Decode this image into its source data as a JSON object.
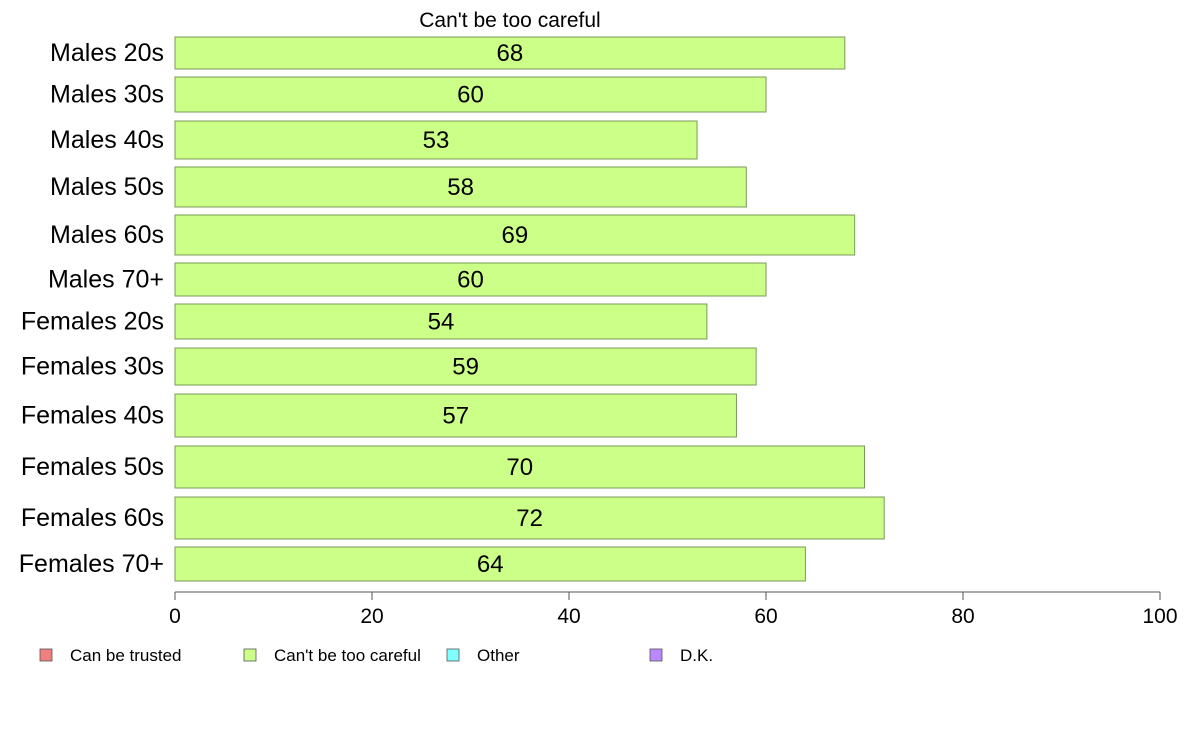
{
  "chart_data": {
    "type": "bar",
    "orientation": "horizontal",
    "title": "Can't be too careful",
    "xlabel": "",
    "ylabel": "",
    "categories": [
      "Males 20s",
      "Males 30s",
      "Males 40s",
      "Males 50s",
      "Males 60s",
      "Males 70+",
      "Females 20s",
      "Females 30s",
      "Females 40s",
      "Females 50s",
      "Females 60s",
      "Females 70+"
    ],
    "values": [
      68,
      60,
      53,
      58,
      69,
      60,
      54,
      59,
      57,
      70,
      72,
      64
    ],
    "value_labels": [
      "68",
      "60",
      "53",
      "58",
      "69",
      "60",
      "54",
      "59",
      "57",
      "70",
      "72",
      "64"
    ],
    "xlim": [
      0,
      100
    ],
    "xticks": [
      0,
      20,
      40,
      60,
      80,
      100
    ],
    "grid": false,
    "legend": {
      "position": "bottom",
      "items": [
        {
          "label": "Can be trusted",
          "color": "#f08080"
        },
        {
          "label": "Can't be too careful",
          "color": "#ccff88"
        },
        {
          "label": "Other",
          "color": "#80ffff"
        },
        {
          "label": "D.K.",
          "color": "#bb88ff"
        }
      ]
    },
    "bar_color": "#ccff88",
    "bar_border_color": "#7a9a5a"
  }
}
